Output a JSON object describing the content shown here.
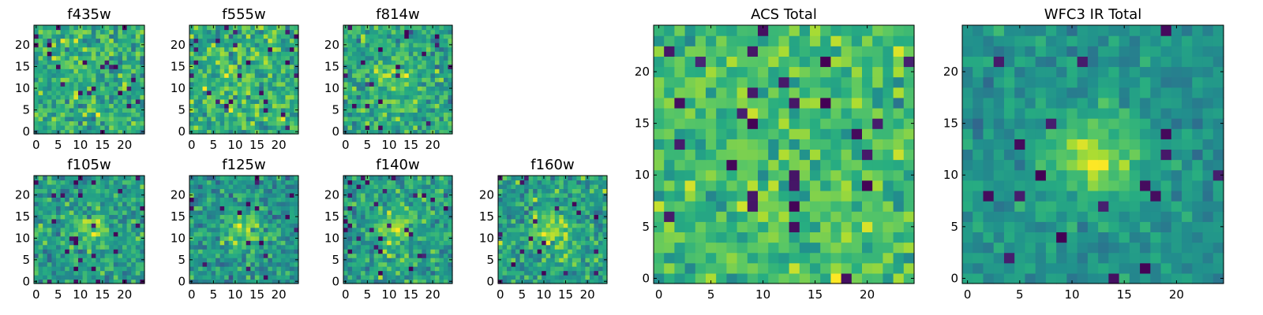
{
  "figure": {
    "description_colormap": "viridis"
  },
  "chart_data": [
    {
      "type": "heatmap",
      "id": "f435w",
      "title": "f435w",
      "grid_size": 25,
      "pattern": "noise",
      "seed": 11,
      "xticks": [
        "0",
        "5",
        "10",
        "15",
        "20"
      ],
      "yticks": [
        "0",
        "5",
        "10",
        "15",
        "20"
      ],
      "xlim": [
        -0.5,
        24.5
      ],
      "ylim": [
        -0.5,
        24.5
      ]
    },
    {
      "type": "heatmap",
      "id": "f555w",
      "title": "f555w",
      "grid_size": 25,
      "pattern": "noise",
      "seed": 23,
      "xticks": [
        "0",
        "5",
        "10",
        "15",
        "20"
      ],
      "yticks": [
        "0",
        "5",
        "10",
        "15",
        "20"
      ],
      "xlim": [
        -0.5,
        24.5
      ],
      "ylim": [
        -0.5,
        24.5
      ]
    },
    {
      "type": "heatmap",
      "id": "f814w",
      "title": "f814w",
      "grid_size": 25,
      "pattern": "faint",
      "seed": 37,
      "xticks": [
        "0",
        "5",
        "10",
        "15",
        "20"
      ],
      "yticks": [
        "0",
        "5",
        "10",
        "15",
        "20"
      ],
      "xlim": [
        -0.5,
        24.5
      ],
      "ylim": [
        -0.5,
        24.5
      ]
    },
    {
      "type": "heatmap",
      "id": "f105w",
      "title": "f105w",
      "grid_size": 25,
      "pattern": "source",
      "seed": 41,
      "xticks": [
        "0",
        "5",
        "10",
        "15",
        "20"
      ],
      "yticks": [
        "0",
        "5",
        "10",
        "15",
        "20"
      ],
      "xlim": [
        -0.5,
        24.5
      ],
      "ylim": [
        -0.5,
        24.5
      ]
    },
    {
      "type": "heatmap",
      "id": "f125w",
      "title": "f125w",
      "grid_size": 25,
      "pattern": "source",
      "seed": 53,
      "xticks": [
        "0",
        "5",
        "10",
        "15",
        "20"
      ],
      "yticks": [
        "0",
        "5",
        "10",
        "15",
        "20"
      ],
      "xlim": [
        -0.5,
        24.5
      ],
      "ylim": [
        -0.5,
        24.5
      ]
    },
    {
      "type": "heatmap",
      "id": "f140w",
      "title": "f140w",
      "grid_size": 25,
      "pattern": "source",
      "seed": 67,
      "xticks": [
        "0",
        "5",
        "10",
        "15",
        "20"
      ],
      "yticks": [
        "0",
        "5",
        "10",
        "15",
        "20"
      ],
      "xlim": [
        -0.5,
        24.5
      ],
      "ylim": [
        -0.5,
        24.5
      ]
    },
    {
      "type": "heatmap",
      "id": "f160w",
      "title": "f160w",
      "grid_size": 25,
      "pattern": "source",
      "seed": 79,
      "xticks": [
        "0",
        "5",
        "10",
        "15",
        "20"
      ],
      "yticks": [
        "0",
        "5",
        "10",
        "15",
        "20"
      ],
      "xlim": [
        -0.5,
        24.5
      ],
      "ylim": [
        -0.5,
        24.5
      ]
    },
    {
      "type": "heatmap",
      "id": "acs_total",
      "title": "ACS Total",
      "grid_size": 25,
      "pattern": "noise_large",
      "seed": 97,
      "xticks": [
        "0",
        "5",
        "10",
        "15",
        "20"
      ],
      "yticks": [
        "0",
        "5",
        "10",
        "15",
        "20"
      ],
      "xlim": [
        -0.5,
        24.5
      ],
      "ylim": [
        -0.5,
        24.5
      ]
    },
    {
      "type": "heatmap",
      "id": "wfc3_total",
      "title": "WFC3 IR Total",
      "grid_size": 25,
      "pattern": "source_large",
      "seed": 131,
      "xticks": [
        "0",
        "5",
        "10",
        "15",
        "20"
      ],
      "yticks": [
        "0",
        "5",
        "10",
        "15",
        "20"
      ],
      "xlim": [
        -0.5,
        24.5
      ],
      "ylim": [
        -0.5,
        24.5
      ]
    }
  ]
}
